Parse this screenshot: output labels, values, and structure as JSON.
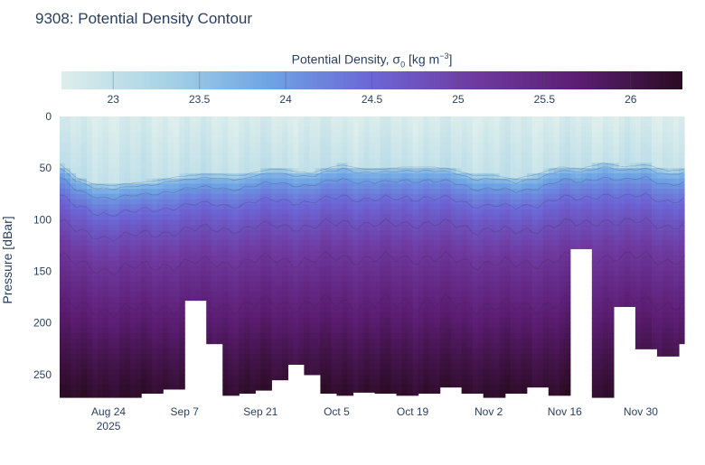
{
  "chart_data": {
    "type": "heatmap",
    "title": "9308: Potential Density Contour",
    "colorbar": {
      "title_main": "Potential Density, σ",
      "title_sub": "0",
      "title_unit_pre": " [kg m",
      "title_unit_sup": "−3",
      "title_unit_post": "]",
      "range": [
        22.7,
        26.3
      ],
      "ticks": [
        23,
        23.5,
        24,
        24.5,
        25,
        25.5,
        26
      ],
      "tick_labels": [
        "23",
        "23.5",
        "24",
        "24.5",
        "25",
        "25.5",
        "26"
      ],
      "colors": [
        "#ddeeec",
        "#a8d3e6",
        "#6ea4e4",
        "#6c66d6",
        "#6f3aa0",
        "#5b1d72",
        "#2a0b22"
      ]
    },
    "ylabel": "Pressure [dBar]",
    "yaxis": {
      "range": [
        0,
        272
      ],
      "reversed": true,
      "ticks": [
        0,
        50,
        100,
        150,
        200,
        250
      ],
      "tick_labels": [
        "0",
        "50",
        "100",
        "150",
        "200",
        "250"
      ]
    },
    "xaxis": {
      "range_days": [
        0,
        115
      ],
      "ticks_days": [
        9,
        23,
        37,
        51,
        65,
        79,
        93,
        107
      ],
      "tick_labels": [
        "Aug 24",
        "Sep 7",
        "Sep 21",
        "Oct 5",
        "Oct 19",
        "Nov 2",
        "Nov 16",
        "Nov 30"
      ],
      "year_label": "2025"
    },
    "profile": {
      "days": [
        0,
        3,
        6,
        9,
        13,
        17,
        21,
        25,
        28,
        31,
        34,
        37,
        40,
        43,
        46,
        49,
        52,
        56,
        60,
        64,
        68,
        72,
        76,
        80,
        84,
        88,
        92,
        96,
        100,
        104,
        108,
        112,
        115
      ],
      "mixed_layer_depth": [
        45,
        58,
        64,
        66,
        64,
        62,
        58,
        56,
        55,
        56,
        56,
        52,
        50,
        52,
        54,
        50,
        46,
        50,
        50,
        48,
        48,
        50,
        56,
        56,
        60,
        55,
        48,
        50,
        44,
        48,
        46,
        52,
        50
      ],
      "max_depth": [
        272,
        272,
        272,
        272,
        272,
        268,
        264,
        178,
        220,
        270,
        268,
        265,
        255,
        240,
        250,
        268,
        270,
        267,
        268,
        270,
        268,
        262,
        268,
        272,
        268,
        262,
        270,
        128,
        272,
        184,
        225,
        232,
        220
      ]
    },
    "surface_min": 22.75,
    "bottom_max": 26.25
  }
}
